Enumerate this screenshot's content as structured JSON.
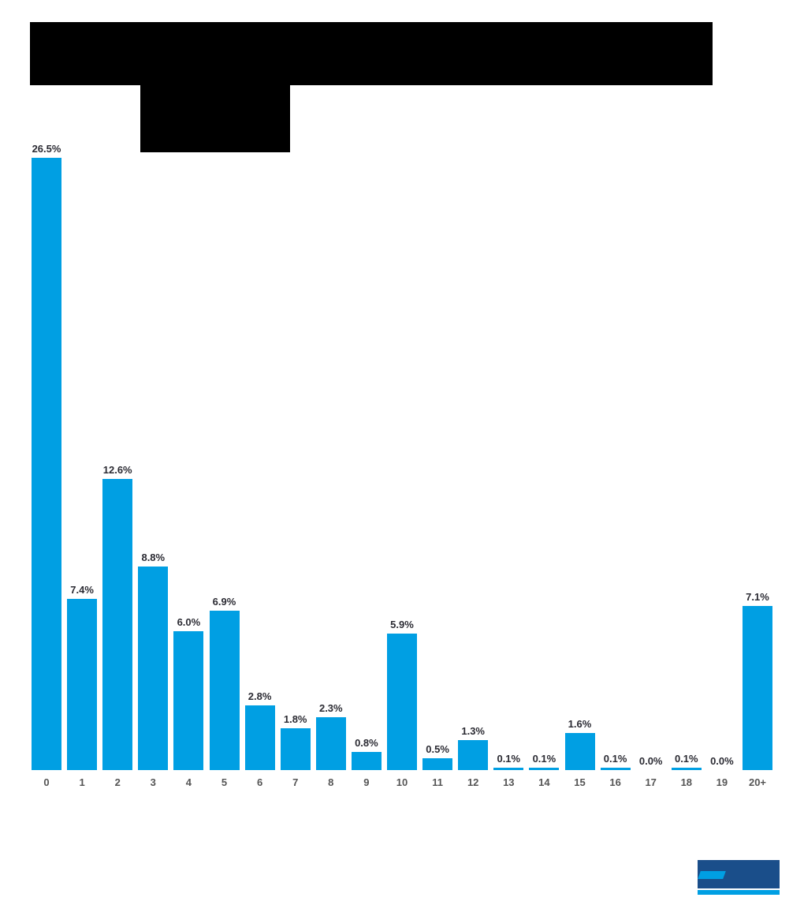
{
  "colors": {
    "bar": "#009fe3",
    "label": "#2b2b33",
    "logo_primary": "#1a4e8a",
    "logo_accent": "#009fe3"
  },
  "chart_data": {
    "type": "bar",
    "title": "",
    "xlabel": "",
    "ylabel": "",
    "categories": [
      "0",
      "1",
      "2",
      "3",
      "4",
      "5",
      "6",
      "7",
      "8",
      "9",
      "10",
      "11",
      "12",
      "13",
      "14",
      "15",
      "16",
      "17",
      "18",
      "19",
      "20+"
    ],
    "values": [
      26.5,
      7.4,
      12.6,
      8.8,
      6.0,
      6.9,
      2.8,
      1.8,
      2.3,
      0.8,
      5.9,
      0.5,
      1.3,
      0.1,
      0.1,
      1.6,
      0.1,
      0.0,
      0.1,
      0.0,
      7.1
    ],
    "labels": [
      "26.5%",
      "7.4%",
      "12.6%",
      "8.8%",
      "6.0%",
      "6.9%",
      "2.8%",
      "1.8%",
      "2.3%",
      "0.8%",
      "5.9%",
      "0.5%",
      "1.3%",
      "0.1%",
      "0.1%",
      "1.6%",
      "0.1%",
      "0.0%",
      "0.1%",
      "0.0%",
      "7.1%"
    ],
    "ylim": [
      0,
      26.5
    ],
    "grid": false,
    "legend": "none",
    "unit": "%"
  }
}
